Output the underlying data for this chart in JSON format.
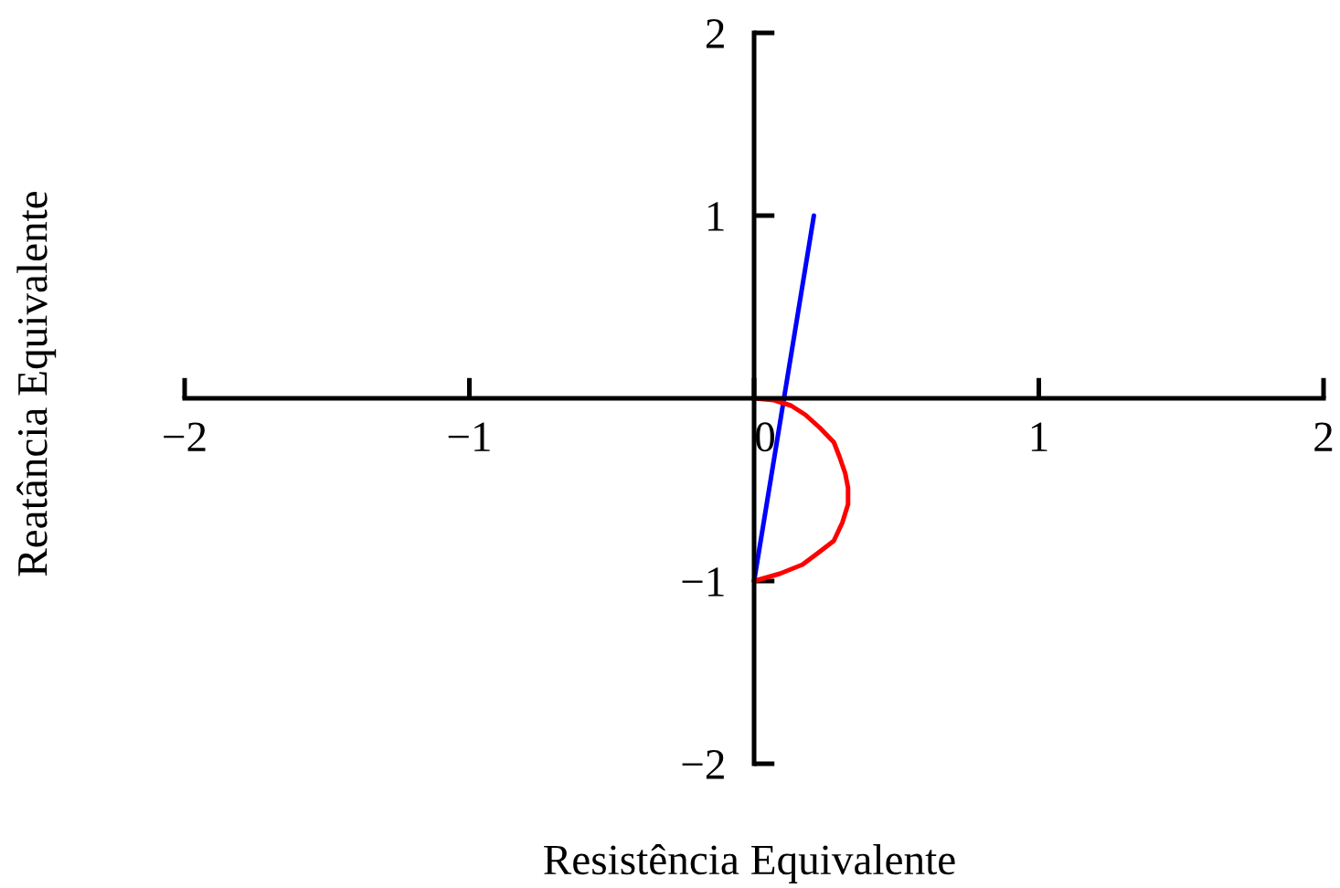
{
  "chart_data": {
    "type": "line",
    "xlabel": "Resistência Equivalente",
    "ylabel": "Reatância Equivalente",
    "xlim": [
      -2,
      2
    ],
    "ylim": [
      -2,
      2
    ],
    "xticks": [
      {
        "value": -2,
        "label": "−2"
      },
      {
        "value": -1,
        "label": "−1"
      },
      0,
      1,
      2
    ],
    "yticks": [
      {
        "value": -2,
        "label": "−2"
      },
      {
        "value": -1,
        "label": "−1"
      },
      1,
      2
    ],
    "grid": false,
    "series": [
      {
        "color": "#0000ff",
        "x": [
          0,
          0.21
        ],
        "values": [
          -1,
          1
        ]
      },
      {
        "color": "#ff0000",
        "x": [
          0,
          0.07,
          0.13,
          0.18,
          0.23,
          0.28,
          0.3,
          0.32,
          0.33,
          0.33,
          0.31,
          0.28,
          0.23,
          0.17,
          0.09,
          0
        ],
        "values": [
          0,
          -0.01,
          -0.04,
          -0.09,
          -0.16,
          -0.24,
          -0.32,
          -0.41,
          -0.49,
          -0.58,
          -0.68,
          -0.78,
          -0.84,
          -0.91,
          -0.96,
          -1
        ]
      }
    ]
  }
}
